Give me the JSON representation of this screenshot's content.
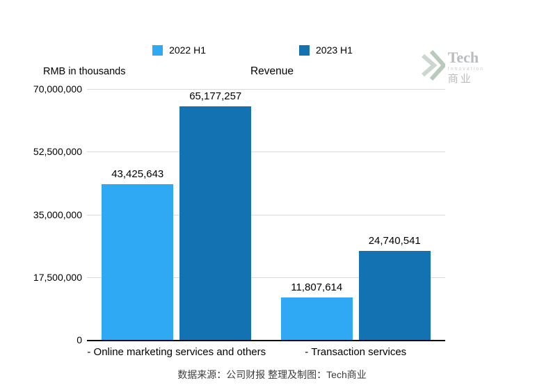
{
  "header": {
    "title": "Revenue",
    "y_axis_unit_label": "RMB in thousands"
  },
  "watermark": {
    "brand": "Tech",
    "sub_brand": "Innovation",
    "cn_brand": "商业"
  },
  "footer": {
    "source_text": "数据来源：公司财报 整理及制图：Tech商业"
  },
  "chart_data": {
    "type": "bar",
    "title": "Revenue",
    "ylabel": "RMB in thousands",
    "categories": [
      "- Online marketing services and others",
      "- Transaction services"
    ],
    "series": [
      {
        "name": "2022 H1",
        "color": "#2FA9F3",
        "values": [
          43425643,
          11807614
        ],
        "labels": [
          "43,425,643",
          "11,807,614"
        ]
      },
      {
        "name": "2023 H1",
        "color": "#1272B2",
        "values": [
          65177257,
          24740541
        ],
        "labels": [
          "65,177,257",
          "24,740,541"
        ]
      }
    ],
    "ylim": [
      0,
      70000000
    ],
    "yticks": [
      {
        "value": 70000000,
        "label": "70,000,000"
      },
      {
        "value": 52500000,
        "label": "52,500,000"
      },
      {
        "value": 35000000,
        "label": "35,000,000"
      },
      {
        "value": 17500000,
        "label": "17,500,000"
      },
      {
        "value": 0,
        "label": "0"
      }
    ],
    "grid": true,
    "legend_position": "top"
  }
}
